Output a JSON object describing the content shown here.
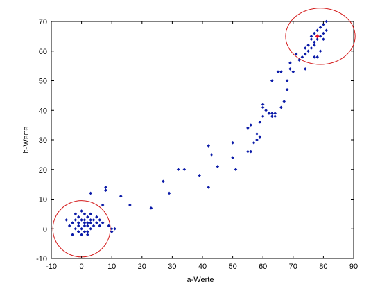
{
  "chart_data": {
    "type": "scatter",
    "title": "",
    "xlabel": "a-Werte",
    "ylabel": "b-Werte",
    "xlim": [
      -10,
      90
    ],
    "ylim": [
      -10,
      70
    ],
    "xticks": [
      -10,
      0,
      10,
      20,
      30,
      40,
      50,
      60,
      70,
      80,
      90
    ],
    "yticks": [
      -10,
      0,
      10,
      20,
      30,
      40,
      50,
      60,
      70
    ],
    "grid": false,
    "colors": {
      "points": "#0a1aa8",
      "centroids": "#e8102a",
      "clusters": "#d41a1a",
      "axes": "#000000"
    },
    "series": [
      {
        "points": [
          [
            -5,
            3
          ],
          [
            -4,
            1
          ],
          [
            -3,
            2
          ],
          [
            -3,
            -2
          ],
          [
            -2,
            0
          ],
          [
            -2,
            3
          ],
          [
            -2,
            5
          ],
          [
            -1,
            1
          ],
          [
            -1,
            2
          ],
          [
            -1,
            4
          ],
          [
            0,
            0
          ],
          [
            0,
            3
          ],
          [
            0,
            6
          ],
          [
            1,
            -1
          ],
          [
            1,
            1
          ],
          [
            1,
            2
          ],
          [
            1,
            3
          ],
          [
            1,
            5
          ],
          [
            2,
            -1
          ],
          [
            2,
            1
          ],
          [
            2,
            2
          ],
          [
            2,
            4
          ],
          [
            3,
            0
          ],
          [
            3,
            2
          ],
          [
            3,
            3
          ],
          [
            3,
            5
          ],
          [
            4,
            1
          ],
          [
            4,
            3
          ],
          [
            5,
            2
          ],
          [
            5,
            4
          ],
          [
            6,
            1
          ],
          [
            6,
            3
          ],
          [
            7,
            2
          ],
          [
            7,
            8
          ],
          [
            8,
            13
          ],
          [
            8,
            14
          ],
          [
            9,
            1
          ],
          [
            10,
            0
          ],
          [
            11,
            0
          ],
          [
            10,
            -1
          ],
          [
            -1,
            -1
          ],
          [
            0,
            -2
          ],
          [
            2,
            -2
          ],
          [
            3,
            12
          ],
          [
            -1,
            -1
          ],
          [
            13,
            11
          ],
          [
            16,
            8
          ],
          [
            23,
            7
          ],
          [
            27,
            16
          ],
          [
            29,
            12
          ],
          [
            32,
            20
          ],
          [
            34,
            20
          ],
          [
            39,
            18
          ],
          [
            42,
            14
          ],
          [
            42,
            28
          ],
          [
            43,
            25
          ],
          [
            45,
            21
          ],
          [
            50,
            24
          ],
          [
            50,
            29
          ],
          [
            51,
            20
          ],
          [
            55,
            26
          ],
          [
            55,
            34
          ],
          [
            56,
            26
          ],
          [
            56,
            35
          ],
          [
            57,
            29
          ],
          [
            58,
            30
          ],
          [
            58,
            32
          ],
          [
            59,
            31
          ],
          [
            59,
            36
          ],
          [
            60,
            38
          ],
          [
            60,
            41
          ],
          [
            60,
            42
          ],
          [
            61,
            40
          ],
          [
            62,
            39
          ],
          [
            63,
            38
          ],
          [
            63,
            39
          ],
          [
            63,
            50
          ],
          [
            64,
            38
          ],
          [
            64,
            39
          ],
          [
            65,
            53
          ],
          [
            66,
            41
          ],
          [
            66,
            53
          ],
          [
            67,
            43
          ],
          [
            68,
            47
          ],
          [
            68,
            50
          ],
          [
            69,
            56
          ],
          [
            69,
            54
          ],
          [
            70,
            53
          ],
          [
            71,
            59
          ],
          [
            72,
            57
          ],
          [
            73,
            58
          ],
          [
            74,
            59
          ],
          [
            74,
            54
          ],
          [
            75,
            62
          ],
          [
            75,
            60
          ],
          [
            76,
            64
          ],
          [
            76,
            65
          ],
          [
            77,
            63
          ],
          [
            77,
            66
          ],
          [
            77,
            58
          ],
          [
            78,
            64
          ],
          [
            78,
            67
          ],
          [
            79,
            65
          ],
          [
            79,
            68
          ],
          [
            79,
            60
          ],
          [
            80,
            66
          ],
          [
            80,
            69
          ],
          [
            81,
            67
          ],
          [
            81,
            70
          ],
          [
            80,
            64
          ],
          [
            76,
            61
          ],
          [
            74,
            61
          ],
          [
            77,
            62
          ],
          [
            78,
            58
          ]
        ]
      },
      {
        "points": [
          [
            78,
            65
          ]
        ]
      }
    ],
    "annotations": [
      {
        "type": "ellipse",
        "center": [
          0,
          0
        ],
        "rx": 9.5,
        "ry": 9.5
      },
      {
        "type": "ellipse",
        "center": [
          79,
          65
        ],
        "rx": 11.5,
        "ry": 9.5
      }
    ]
  }
}
